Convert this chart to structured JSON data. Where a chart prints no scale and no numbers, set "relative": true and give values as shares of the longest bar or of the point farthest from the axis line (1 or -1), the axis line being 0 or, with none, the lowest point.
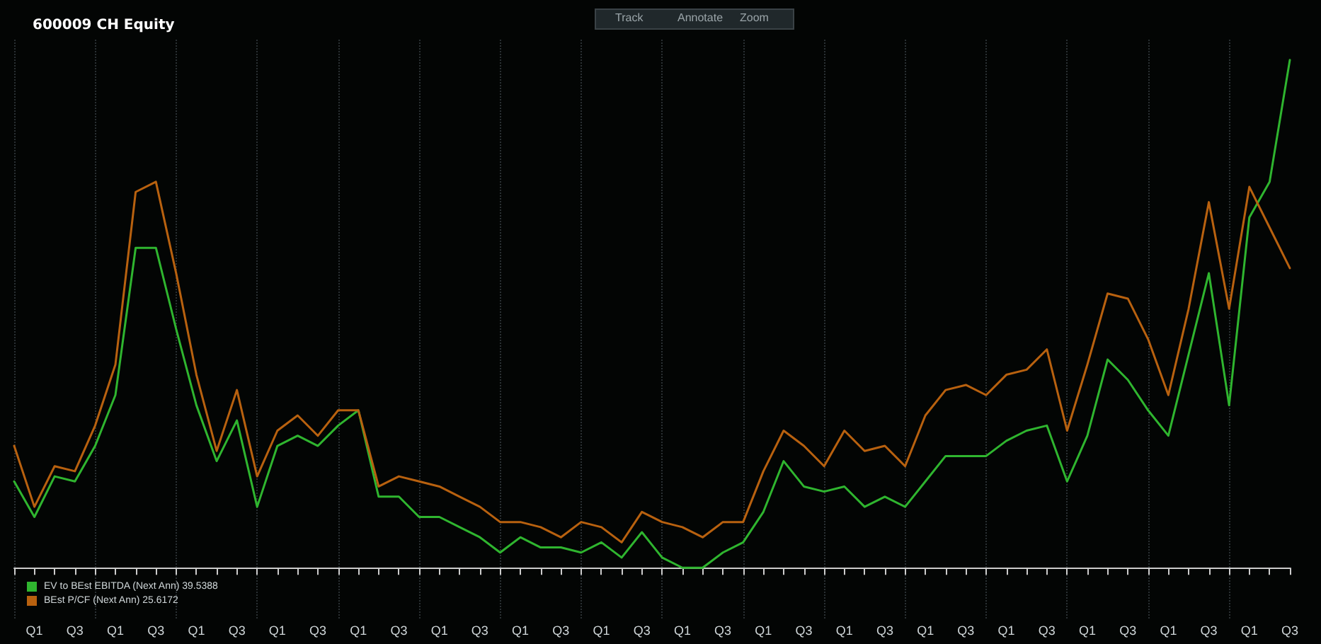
{
  "chart_data": {
    "type": "line",
    "title": "600009 CH Equity",
    "annotations": [
      "Track",
      "Annotate",
      "Zoom"
    ],
    "categories": [
      null,
      "Q1",
      null,
      "Q3",
      null,
      "Q1",
      null,
      "Q3",
      null,
      "Q1",
      null,
      "Q3",
      null,
      "Q1",
      null,
      "Q3",
      null,
      "Q1",
      null,
      "Q3",
      null,
      "Q1",
      null,
      "Q3",
      null,
      "Q1",
      null,
      "Q3",
      null,
      "Q1",
      null,
      "Q3",
      null,
      "Q1",
      null,
      "Q3",
      null,
      "Q1",
      null,
      "Q3",
      null,
      "Q1",
      null,
      "Q3",
      null,
      "Q1",
      null,
      "Q3",
      null,
      "Q1",
      null,
      "Q3",
      null,
      "Q1",
      null,
      "Q3",
      null,
      "Q1",
      null,
      "Q3",
      null,
      "Q1",
      null,
      "Q3"
    ],
    "relative": true,
    "series": [
      {
        "name": "EV to BEst EBITDA (Next Ann) 39.5388",
        "color": "#2fb52f",
        "values": [
          0.17,
          0.1,
          0.18,
          0.17,
          0.24,
          0.34,
          0.63,
          0.63,
          0.47,
          0.32,
          0.21,
          0.29,
          0.12,
          0.24,
          0.26,
          0.24,
          0.28,
          0.31,
          0.14,
          0.14,
          0.1,
          0.1,
          0.08,
          0.06,
          0.03,
          0.06,
          0.04,
          0.04,
          0.03,
          0.05,
          0.02,
          0.07,
          0.02,
          0,
          0,
          0.03,
          0.05,
          0.11,
          0.21,
          0.16,
          0.15,
          0.16,
          0.12,
          0.14,
          0.12,
          0.17,
          0.22,
          0.22,
          0.22,
          0.25,
          0.27,
          0.28,
          0.17,
          0.26,
          0.41,
          0.37,
          0.31,
          0.26,
          0.42,
          0.58,
          0.32,
          0.69,
          0.76,
          1
        ]
      },
      {
        "name": "BEst P/CF (Next Ann) 25.6172",
        "color": "#b8610f",
        "values": [
          0.24,
          0.12,
          0.2,
          0.19,
          0.28,
          0.4,
          0.74,
          0.76,
          0.58,
          0.38,
          0.23,
          0.35,
          0.18,
          0.27,
          0.3,
          0.26,
          0.31,
          0.31,
          0.16,
          0.18,
          0.17,
          0.16,
          0.14,
          0.12,
          0.09,
          0.09,
          0.08,
          0.06,
          0.09,
          0.08,
          0.05,
          0.11,
          0.09,
          0.08,
          0.06,
          0.09,
          0.09,
          0.19,
          0.27,
          0.24,
          0.2,
          0.27,
          0.23,
          0.24,
          0.2,
          0.3,
          0.35,
          0.36,
          0.34,
          0.38,
          0.39,
          0.43,
          0.27,
          0.4,
          0.54,
          0.53,
          0.45,
          0.34,
          0.51,
          0.72,
          0.51,
          0.75,
          0.67,
          0.59
        ]
      }
    ],
    "grid": "x",
    "legend": "bottom left",
    "marker": "none",
    "line_style": "solid"
  }
}
